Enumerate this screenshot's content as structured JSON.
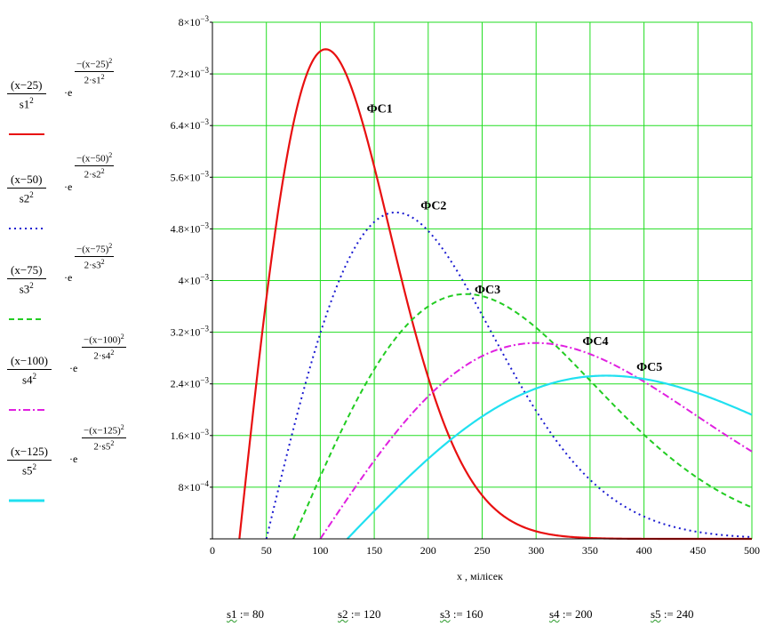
{
  "legend": [
    {
      "num": "(x−25)",
      "den": "s1",
      "exp_num": "−(x−25)",
      "exp_den": "2·s1",
      "color": "#e81010",
      "dash": ""
    },
    {
      "num": "(x−50)",
      "den": "s2",
      "exp_num": "−(x−50)",
      "exp_den": "2·s2",
      "color": "#1a1ad0",
      "dash": "2,4"
    },
    {
      "num": "(x−75)",
      "den": "s3",
      "exp_num": "−(x−75)",
      "exp_den": "2·s3",
      "color": "#22cc22",
      "dash": "6,4"
    },
    {
      "num": "(x−100)",
      "den": "s4",
      "exp_num": "−(x−100)",
      "exp_den": "2·s4",
      "color": "#e020e0",
      "dash": "8,3,2,3"
    },
    {
      "num": "(x−125)",
      "den": "s5",
      "exp_num": "−(x−125)",
      "exp_den": "2·s5",
      "color": "#20e0f0",
      "dash": ""
    }
  ],
  "definitions": [
    {
      "name": "s1",
      "value": "80"
    },
    {
      "name": "s2",
      "value": "120"
    },
    {
      "name": "s3",
      "value": "160"
    },
    {
      "name": "s4",
      "value": "200"
    },
    {
      "name": "s5",
      "value": "240"
    }
  ],
  "chart_data": {
    "type": "line",
    "title": "",
    "xlabel": "x , мілісек",
    "ylabel": "",
    "xlim": [
      0,
      500
    ],
    "ylim": [
      0,
      0.008
    ],
    "grid": true,
    "x_ticks": [
      0,
      50,
      100,
      150,
      200,
      250,
      300,
      350,
      400,
      450,
      500
    ],
    "x_tick_labels": [
      "0",
      "50",
      "100",
      "150",
      "200",
      "250",
      "300",
      "350",
      "400",
      "450",
      "500"
    ],
    "y_ticks": [
      0.0008,
      0.0016,
      0.0024,
      0.0032,
      0.004,
      0.0048,
      0.0056,
      0.0064,
      0.0072,
      0.008
    ],
    "y_tick_labels": [
      {
        "mant": "8×10",
        "exp": "−4"
      },
      {
        "mant": "1.6×10",
        "exp": "−3"
      },
      {
        "mant": "2.4×10",
        "exp": "−3"
      },
      {
        "mant": "3.2×10",
        "exp": "−3"
      },
      {
        "mant": "4×10",
        "exp": "−3"
      },
      {
        "mant": "4.8×10",
        "exp": "−3"
      },
      {
        "mant": "5.6×10",
        "exp": "−3"
      },
      {
        "mant": "6.4×10",
        "exp": "−3"
      },
      {
        "mant": "7.2×10",
        "exp": "−3"
      },
      {
        "mant": "8×10",
        "exp": "−3"
      }
    ],
    "series": [
      {
        "shift": 25,
        "s": 80,
        "color": "#e81010",
        "dash": "",
        "label": "ФС1",
        "label_at": [
          155,
          0.0066
        ]
      },
      {
        "shift": 50,
        "s": 120,
        "color": "#1a1ad0",
        "dash": "2,4",
        "label": "ФС2",
        "label_at": [
          205,
          0.0051
        ]
      },
      {
        "shift": 75,
        "s": 160,
        "color": "#22cc22",
        "dash": "6,4",
        "label": "ФС3",
        "label_at": [
          255,
          0.0038
        ]
      },
      {
        "shift": 100,
        "s": 200,
        "color": "#e020e0",
        "dash": "8,3,2,3",
        "label": "ФС4",
        "label_at": [
          355,
          0.003
        ]
      },
      {
        "shift": 125,
        "s": 240,
        "color": "#20e0f0",
        "dash": "",
        "label": "ФС5",
        "label_at": [
          405,
          0.0026
        ]
      }
    ]
  }
}
